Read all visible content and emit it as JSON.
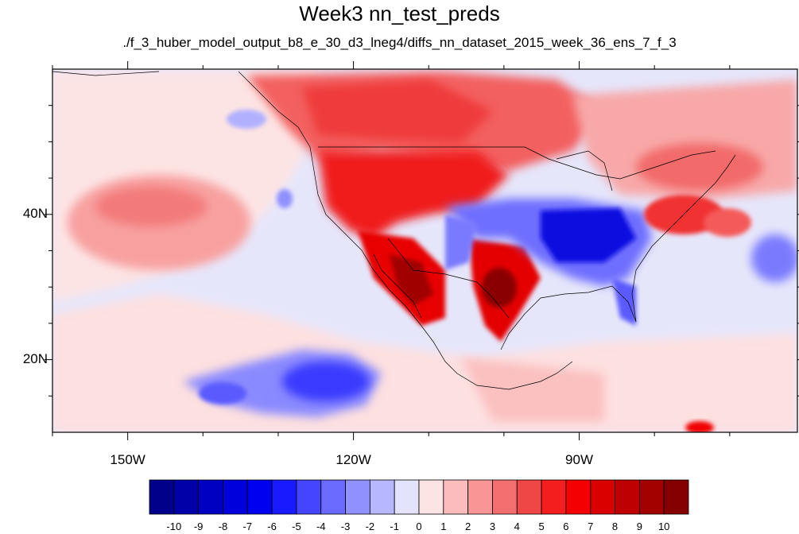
{
  "title": "Week3 nn_test_preds",
  "subtitle": "./f_3_huber_model_output_b8_e_30_d3_lneg4/diffs_nn_dataset_2015_week_36_ens_7_f_3",
  "lat_labels": [
    {
      "text": "40N",
      "lat": 40
    },
    {
      "text": "20N",
      "lat": 20
    }
  ],
  "lon_labels": [
    {
      "text": "150W",
      "lon": -150
    },
    {
      "text": "120W",
      "lon": -120
    },
    {
      "text": "90W",
      "lon": -90
    }
  ],
  "map_extent": {
    "lon": [
      -160,
      -61
    ],
    "lat": [
      10,
      60
    ]
  },
  "colorbar": {
    "labels": [
      "-10",
      "-9",
      "-8",
      "-7",
      "-6",
      "-5",
      "-4",
      "-3",
      "-2",
      "-1",
      "0",
      "1",
      "2",
      "3",
      "4",
      "5",
      "6",
      "7",
      "8",
      "9",
      "10"
    ],
    "colors": [
      "#00008a",
      "#0000a8",
      "#0000c2",
      "#0000dc",
      "#0000f0",
      "#1a1aff",
      "#4545ff",
      "#6a6aff",
      "#9090ff",
      "#b7b7ff",
      "#e3e3fb",
      "#fde4e4",
      "#fbbcbc",
      "#f89696",
      "#f36e6e",
      "#ef4646",
      "#f41e1e",
      "#f40000",
      "#da0000",
      "#bf0000",
      "#a30000",
      "#850000"
    ]
  }
}
